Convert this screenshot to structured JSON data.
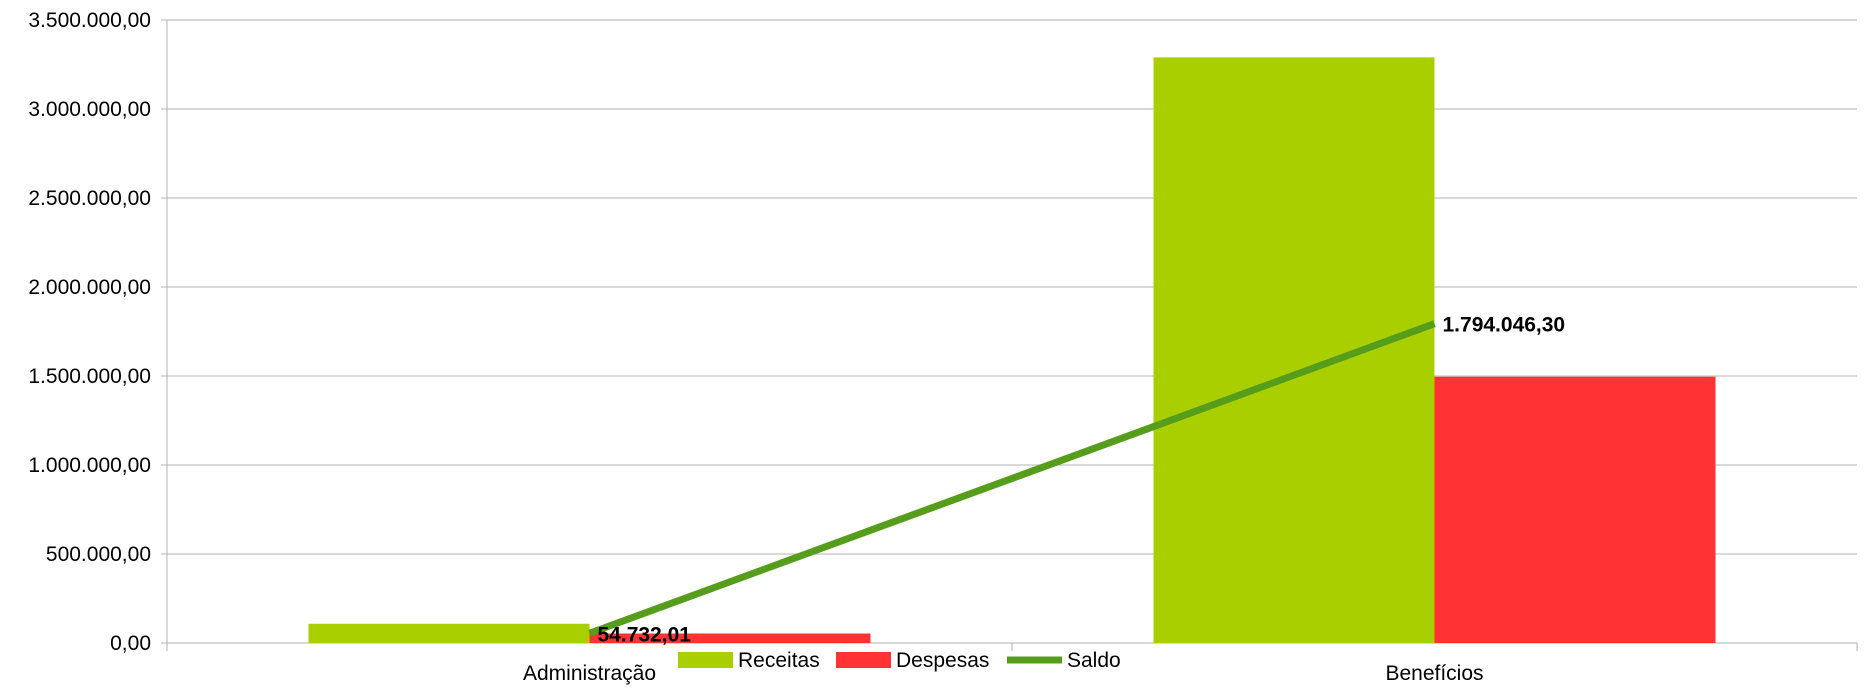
{
  "chart_data": {
    "type": "bar",
    "title": "",
    "xlabel": "",
    "ylabel": "",
    "categories": [
      "Administração",
      "Benefícios"
    ],
    "series": [
      {
        "name": "Receitas",
        "type": "bar",
        "color": "#aacf00",
        "values": [
          108000,
          3290000
        ]
      },
      {
        "name": "Despesas",
        "type": "bar",
        "color": "#ff3333",
        "values": [
          53300,
          1496000
        ]
      },
      {
        "name": "Saldo",
        "type": "line",
        "color": "#579d1c",
        "values": [
          54732.01,
          1794046.3
        ],
        "data_labels": [
          "54.732,01",
          "1.794.046,30"
        ]
      }
    ],
    "ylim": [
      0,
      3500000
    ],
    "y_ticks": [
      0,
      500000,
      1000000,
      1500000,
      2000000,
      2500000,
      3000000,
      3500000
    ],
    "y_tick_labels": [
      "0,00",
      "500.000,00",
      "1.000.000,00",
      "1.500.000,00",
      "2.000.000,00",
      "2.500.000,00",
      "3.000.000,00",
      "3.500.000,00"
    ],
    "grid": true,
    "legend_position": "bottom"
  }
}
